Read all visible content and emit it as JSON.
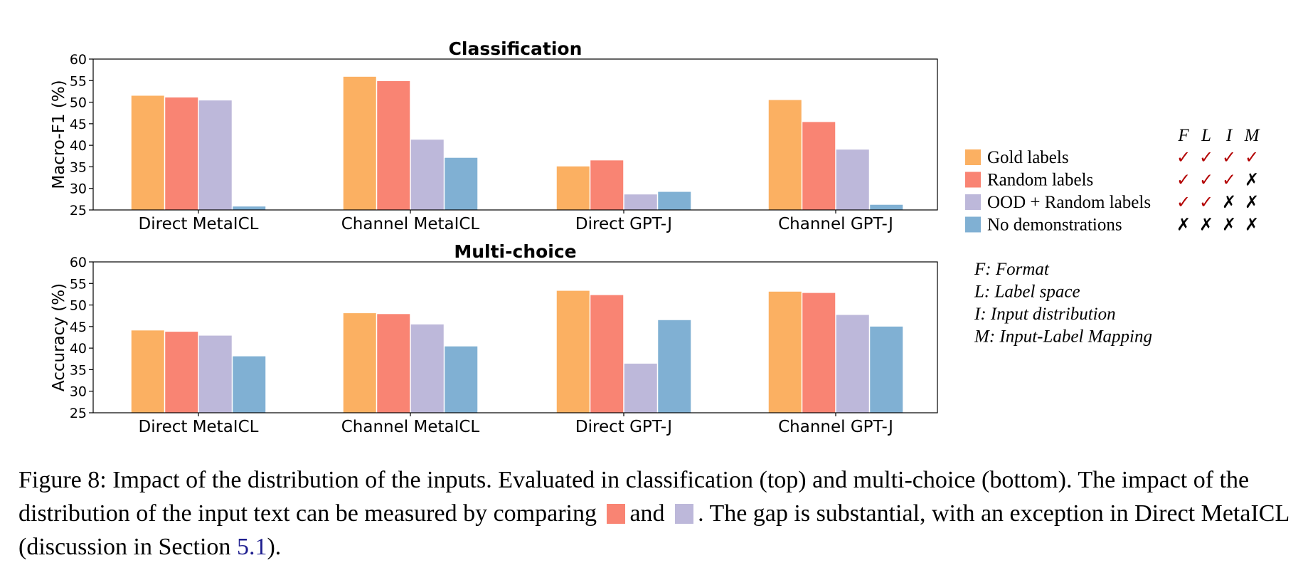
{
  "figure": {
    "legend": {
      "header": [
        "F",
        "L",
        "I",
        "M"
      ],
      "items": [
        {
          "label": "Gold labels",
          "color": "#fbb062",
          "marks": [
            "✓",
            "✓",
            "✓",
            "✓"
          ]
        },
        {
          "label": "Random labels",
          "color": "#f98473",
          "marks": [
            "✓",
            "✓",
            "✓",
            "✗"
          ]
        },
        {
          "label": "OOD + Random labels",
          "color": "#bdb8da",
          "marks": [
            "✓",
            "✓",
            "✗",
            "✗"
          ]
        },
        {
          "label": "No demonstrations",
          "color": "#80b0d3",
          "marks": [
            "✗",
            "✗",
            "✗",
            "✗"
          ]
        }
      ],
      "check_color": "#b30000",
      "cross_color": "#000000"
    },
    "key": [
      "F: Format",
      "L: Label space",
      "I: Input distribution",
      "M: Input-Label Mapping"
    ],
    "caption": {
      "part1": "Figure 8: Impact of the distribution of the inputs. Evaluated in classification (top) and multi-choice (bottom). The impact of the distribution of the input text can be measured by comparing",
      "part2": "and",
      "part3": ". The gap is substantial, with an exception in Direct MetaICL (discussion in Section",
      "ref": "5.1",
      "part4": ")."
    }
  },
  "chart_data": [
    {
      "type": "bar",
      "title": "Classification",
      "ylabel": "Macro-F1 (%)",
      "xlabel": "",
      "ylim": [
        25,
        60
      ],
      "yticks": [
        25,
        30,
        35,
        40,
        45,
        50,
        55,
        60
      ],
      "grid": false,
      "categories": [
        "Direct MetaICL",
        "Channel MetaICL",
        "Direct GPT-J",
        "Channel GPT-J"
      ],
      "series": [
        {
          "name": "Gold labels",
          "color": "#fbb062",
          "values": [
            51.5,
            55.9,
            35.1,
            50.5
          ]
        },
        {
          "name": "Random labels",
          "color": "#f98473",
          "values": [
            51.1,
            54.9,
            36.5,
            45.4
          ]
        },
        {
          "name": "OOD + Random labels",
          "color": "#bdb8da",
          "values": [
            50.4,
            41.3,
            28.6,
            39.0
          ]
        },
        {
          "name": "No demonstrations",
          "color": "#80b0d3",
          "values": [
            25.8,
            37.1,
            29.2,
            26.2
          ]
        }
      ]
    },
    {
      "type": "bar",
      "title": "Multi-choice",
      "ylabel": "Accuracy (%)",
      "xlabel": "",
      "ylim": [
        25,
        60
      ],
      "yticks": [
        25,
        30,
        35,
        40,
        45,
        50,
        55,
        60
      ],
      "grid": false,
      "categories": [
        "Direct MetaICL",
        "Channel MetaICL",
        "Direct GPT-J",
        "Channel GPT-J"
      ],
      "series": [
        {
          "name": "Gold labels",
          "color": "#fbb062",
          "values": [
            44.1,
            48.1,
            53.3,
            53.1
          ]
        },
        {
          "name": "Random labels",
          "color": "#f98473",
          "values": [
            43.8,
            47.9,
            52.3,
            52.8
          ]
        },
        {
          "name": "OOD + Random labels",
          "color": "#bdb8da",
          "values": [
            42.9,
            45.5,
            36.4,
            47.7
          ]
        },
        {
          "name": "No demonstrations",
          "color": "#80b0d3",
          "values": [
            38.1,
            40.4,
            46.5,
            45.0
          ]
        }
      ]
    }
  ]
}
